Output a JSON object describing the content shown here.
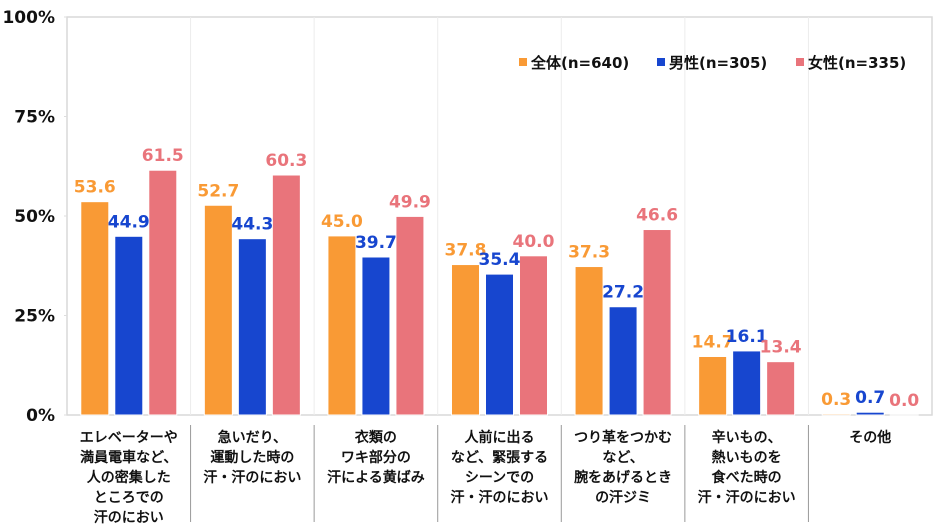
{
  "chart_data": {
    "type": "bar",
    "title": "",
    "xlabel": "",
    "ylabel": "",
    "ylim": [
      0,
      100
    ],
    "yticks": [
      "0%",
      "25%",
      "50%",
      "75%",
      "100%"
    ],
    "ytick_values": [
      0,
      25,
      50,
      75,
      100
    ],
    "grid": "vertical category separators",
    "legend_position": "top-right",
    "categories": [
      "エレベーターや\n満員電車など、\n人の密集した\nところでの\n汗のにおい",
      "急いだり、\n運動した時の\n汗・汗のにおい",
      "衣類の\nワキ部分の\n汗による黄ばみ",
      "人前に出る\nなど、緊張する\nシーンでの\n汗・汗のにおい",
      "つり革をつかむ\nなど、\n腕をあげるとき\nの汗ジミ",
      "辛いもの、\n熱いものを\n食べた時の\n汗・汗のにおい",
      "その他"
    ],
    "series": [
      {
        "name": "全体(n=640)",
        "color": "#F99A35",
        "values": [
          53.6,
          52.7,
          45.0,
          37.8,
          37.3,
          14.7,
          0.3
        ],
        "labels": [
          "53.6",
          "52.7",
          "45.0",
          "37.8",
          "37.3",
          "14.7",
          "0.3"
        ]
      },
      {
        "name": "男性(n=305)",
        "color": "#1746CF",
        "values": [
          44.9,
          44.3,
          39.7,
          35.4,
          27.2,
          16.1,
          0.7
        ],
        "labels": [
          "44.9",
          "44.3",
          "39.7",
          "35.4",
          "27.2",
          "16.1",
          "0.7"
        ]
      },
      {
        "name": "女性(n=335)",
        "color": "#E9747B",
        "values": [
          61.5,
          60.3,
          49.9,
          40.0,
          46.6,
          13.4,
          0.0
        ],
        "labels": [
          "61.5",
          "60.3",
          "49.9",
          "40.0",
          "46.6",
          "13.4",
          "0.0"
        ]
      }
    ]
  }
}
